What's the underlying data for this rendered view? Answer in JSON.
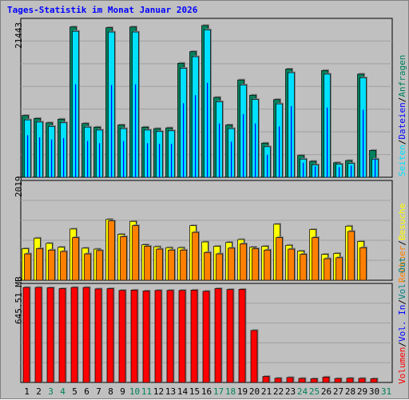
{
  "title": "Tages-Statistik im Monat Januar 2026",
  "panels": {
    "top": {
      "ylabel": "21443"
    },
    "middle": {
      "ylabel": "2019"
    },
    "bottom": {
      "ylabel": "645.51 MB"
    }
  },
  "legends": {
    "top": [
      {
        "label": "Anfragen",
        "color": "#00805c"
      },
      {
        "label": "Dateien",
        "color": "#0000ff"
      },
      {
        "label": "Seiten",
        "color": "#00e0ff"
      }
    ],
    "middle": [
      {
        "label": "Besuche",
        "color": "#ffff00"
      },
      {
        "label": "Rechner",
        "color": "#ff8000"
      }
    ],
    "bottom": [
      {
        "label": "Vol. Out",
        "color": "#008080"
      },
      {
        "label": "Vol. In",
        "color": "#0000ff"
      },
      {
        "label": "Volumen",
        "color": "#ff0000"
      }
    ]
  },
  "chart_data": {
    "type": "bar",
    "categories": [
      "1",
      "2",
      "3",
      "4",
      "5",
      "6",
      "7",
      "8",
      "9",
      "10",
      "11",
      "12",
      "13",
      "14",
      "15",
      "16",
      "17",
      "18",
      "19",
      "20",
      "21",
      "22",
      "23",
      "24",
      "25",
      "26",
      "27",
      "28",
      "29",
      "30",
      "31"
    ],
    "weekend_days": [
      "3",
      "4",
      "10",
      "11",
      "17",
      "18",
      "24",
      "25",
      "31"
    ],
    "colors": {
      "weekday": "#000000",
      "weekend": "#00805c"
    },
    "panels": [
      {
        "name": "requests",
        "ylim": [
          0,
          21443
        ],
        "series": [
          {
            "name": "Anfragen",
            "color": "#00805c",
            "values": [
              8500,
              8100,
              7500,
              8000,
              20700,
              7400,
              6900,
              20600,
              7200,
              20700,
              6900,
              6700,
              6800,
              15700,
              17300,
              20900,
              11000,
              7200,
              13400,
              11300,
              4700,
              10700,
              14900,
              3000,
              2200,
              14700,
              2000,
              2300,
              14200,
              3700,
              null
            ]
          },
          {
            "name": "Dateien",
            "color": "#0000ff",
            "values": [
              5800,
              5500,
              5200,
              5400,
              12800,
              5000,
              4700,
              12700,
              5000,
              12800,
              4700,
              4600,
              4600,
              10200,
              11300,
              13000,
              7400,
              4900,
              8700,
              7400,
              3100,
              7000,
              9800,
              2000,
              1500,
              9600,
              1400,
              1600,
              9300,
              2500,
              null
            ]
          },
          {
            "name": "Seiten",
            "color": "#00e0ff",
            "values": [
              7900,
              7600,
              7000,
              7500,
              20100,
              6900,
              6500,
              20000,
              6700,
              20000,
              6500,
              6300,
              6400,
              15000,
              16600,
              20300,
              10400,
              6700,
              12700,
              10700,
              4200,
              10100,
              14400,
              2500,
              1700,
              14200,
              1800,
              1900,
              13700,
              2500,
              null
            ]
          }
        ]
      },
      {
        "name": "visits",
        "ylim": [
          0,
          2019
        ],
        "series": [
          {
            "name": "Besuche",
            "color": "#ffff00",
            "values": [
              660,
              880,
              770,
              690,
              1070,
              670,
              650,
              1270,
              960,
              1230,
              740,
              700,
              680,
              680,
              1140,
              800,
              710,
              790,
              850,
              690,
              710,
              1170,
              730,
              610,
              1060,
              540,
              560,
              1130,
              810,
              null,
              null
            ]
          },
          {
            "name": "Rechner",
            "color": "#ff8000",
            "values": [
              550,
              660,
              630,
              600,
              890,
              550,
              620,
              1240,
              910,
              1140,
              710,
              650,
              630,
              630,
              1000,
              580,
              550,
              670,
              760,
              660,
              630,
              890,
              650,
              540,
              890,
              450,
              470,
              1020,
              680,
              null,
              null
            ]
          }
        ]
      },
      {
        "name": "volume",
        "unit": "MB",
        "ylim": [
          0,
          645.51
        ],
        "series": [
          {
            "name": "Volumen",
            "color": "#ff0000",
            "values": [
              640,
              640,
              638,
              632,
              640,
              640,
              630,
              632,
              620,
              622,
              616,
              620,
              620,
              620,
              622,
              614,
              632,
              626,
              627,
              350,
              40,
              28,
              33,
              27,
              25,
              36,
              26,
              28,
              27,
              25,
              null
            ]
          }
        ]
      }
    ]
  }
}
